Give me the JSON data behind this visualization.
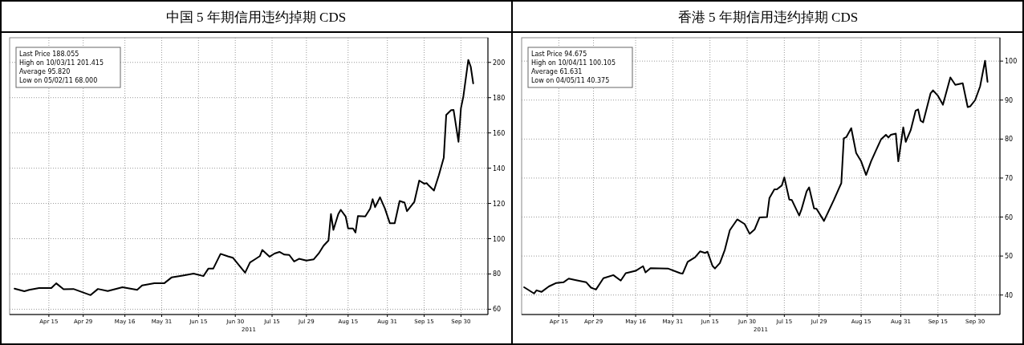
{
  "chart_data": [
    {
      "type": "line",
      "title": "中国 5 年期信用违约掉期 CDS",
      "xlabel": "2011",
      "color": "#000000",
      "grid": true,
      "x": [
        "2011-04-01",
        "2011-04-05",
        "2011-04-07",
        "2011-04-11",
        "2011-04-16",
        "2011-04-18",
        "2011-04-21",
        "2011-04-25",
        "2011-05-02",
        "2011-05-05",
        "2011-05-09",
        "2011-05-15",
        "2011-05-21",
        "2011-05-23",
        "2011-05-28",
        "2011-06-01",
        "2011-06-04",
        "2011-06-09",
        "2011-06-13",
        "2011-06-17",
        "2011-06-19",
        "2011-06-21",
        "2011-06-24",
        "2011-06-27",
        "2011-06-29",
        "2011-07-04",
        "2011-07-06",
        "2011-07-08",
        "2011-07-10",
        "2011-07-11",
        "2011-07-14",
        "2011-07-16",
        "2011-07-18",
        "2011-07-20",
        "2011-07-22",
        "2011-07-24",
        "2011-07-26",
        "2011-07-29",
        "2011-08-01",
        "2011-08-03",
        "2011-08-05",
        "2011-08-07",
        "2011-08-08",
        "2011-08-09",
        "2011-08-11",
        "2011-08-12",
        "2011-08-14",
        "2011-08-15",
        "2011-08-17",
        "2011-08-18",
        "2011-08-19",
        "2011-08-22",
        "2011-08-24",
        "2011-08-25",
        "2011-08-26",
        "2011-08-28",
        "2011-08-30",
        "2011-09-01",
        "2011-09-03",
        "2011-09-05",
        "2011-09-07",
        "2011-09-08",
        "2011-09-11",
        "2011-09-13",
        "2011-09-15",
        "2011-09-16",
        "2011-09-17",
        "2011-09-19",
        "2011-09-21",
        "2011-09-23",
        "2011-09-24",
        "2011-09-26",
        "2011-09-27",
        "2011-09-29",
        "2011-09-30",
        "2011-10-01",
        "2011-10-03",
        "2011-10-04",
        "2011-10-05"
      ],
      "values": [
        71.7,
        70.2,
        71,
        72,
        72,
        74.7,
        71.3,
        71.5,
        68,
        71.5,
        70.3,
        72.5,
        71,
        73.5,
        74.7,
        74.7,
        78,
        79.2,
        80.2,
        78.8,
        83,
        83,
        91.4,
        90,
        89.2,
        80.7,
        86.5,
        88.3,
        90.1,
        93.6,
        89.8,
        91.6,
        92.5,
        91,
        90.8,
        87.1,
        88.6,
        87.6,
        88.3,
        91.6,
        96,
        99,
        114,
        105,
        114,
        116.4,
        112.6,
        105.8,
        105.8,
        103.5,
        112.9,
        112.6,
        117.1,
        122.4,
        117.9,
        123.5,
        117.1,
        108.8,
        108.8,
        121.4,
        120.5,
        115.6,
        120.9,
        133,
        131.2,
        131.5,
        130,
        127.3,
        136.1,
        146,
        170.2,
        172.9,
        173,
        155,
        174,
        180.8,
        201.4,
        197.5,
        188.1
      ],
      "xlim": [
        "2011-03-30",
        "2011-10-11"
      ],
      "ylim": [
        57,
        214
      ],
      "xticks": [
        {
          "value": "2011-04-15",
          "label": "Apr 15"
        },
        {
          "value": "2011-04-29",
          "label": "Apr 29"
        },
        {
          "value": "2011-05-16",
          "label": "May 16"
        },
        {
          "value": "2011-05-31",
          "label": "May 31"
        },
        {
          "value": "2011-06-15",
          "label": "Jun 15"
        },
        {
          "value": "2011-06-30",
          "label": "Jun 30"
        },
        {
          "value": "2011-07-15",
          "label": "Jul 15"
        },
        {
          "value": "2011-07-29",
          "label": "Jul 29"
        },
        {
          "value": "2011-08-15",
          "label": "Aug 15"
        },
        {
          "value": "2011-08-31",
          "label": "Aug 31"
        },
        {
          "value": "2011-09-15",
          "label": "Sep 15"
        },
        {
          "value": "2011-09-30",
          "label": "Sep 30"
        }
      ],
      "yticks": [
        60,
        80,
        100,
        120,
        140,
        160,
        180,
        200
      ],
      "annotations": [
        "Last Price 188.055",
        "High on 10/03/11 201.415",
        "Average 95.820",
        "Low on 05/02/11 68.000"
      ]
    },
    {
      "type": "line",
      "title": "香港 5 年期信用违约掉期 CDS",
      "xlabel": "2011",
      "color": "#000000",
      "grid": true,
      "x": [
        "2011-04-01",
        "2011-04-05",
        "2011-04-06",
        "2011-04-08",
        "2011-04-11",
        "2011-04-14",
        "2011-04-17",
        "2011-04-19",
        "2011-04-22",
        "2011-04-26",
        "2011-04-28",
        "2011-04-30",
        "2011-05-03",
        "2011-05-07",
        "2011-05-10",
        "2011-05-12",
        "2011-05-16",
        "2011-05-19",
        "2011-05-20",
        "2011-05-22",
        "2011-05-29",
        "2011-06-03",
        "2011-06-04",
        "2011-06-06",
        "2011-06-09",
        "2011-06-11",
        "2011-06-13",
        "2011-06-14",
        "2011-06-16",
        "2011-06-17",
        "2011-06-19",
        "2011-06-21",
        "2011-06-23",
        "2011-06-26",
        "2011-06-29",
        "2011-07-01",
        "2011-07-03",
        "2011-07-05",
        "2011-07-08",
        "2011-07-09",
        "2011-07-11",
        "2011-07-12",
        "2011-07-14",
        "2011-07-15",
        "2011-07-17",
        "2011-07-18",
        "2011-07-21",
        "2011-07-22",
        "2011-07-24",
        "2011-07-25",
        "2011-07-27",
        "2011-07-28",
        "2011-07-31",
        "2011-08-04",
        "2011-08-06",
        "2011-08-07",
        "2011-08-08",
        "2011-08-09",
        "2011-08-11",
        "2011-08-13",
        "2011-08-15",
        "2011-08-17",
        "2011-08-19",
        "2011-08-21",
        "2011-08-23",
        "2011-08-25",
        "2011-08-26",
        "2011-08-27",
        "2011-08-29",
        "2011-08-30",
        "2011-09-01",
        "2011-09-02",
        "2011-09-04",
        "2011-09-06",
        "2011-09-07",
        "2011-09-08",
        "2011-09-09",
        "2011-09-12",
        "2011-09-13",
        "2011-09-15",
        "2011-09-17",
        "2011-09-20",
        "2011-09-22",
        "2011-09-25",
        "2011-09-27",
        "2011-09-28",
        "2011-09-30",
        "2011-10-02",
        "2011-10-04",
        "2011-10-05"
      ],
      "values": [
        42,
        40.4,
        41.2,
        40.8,
        42.2,
        43.1,
        43.3,
        44.2,
        43.8,
        43.3,
        41.9,
        41.4,
        44.3,
        45.1,
        43.7,
        45.6,
        46.2,
        47.4,
        45.8,
        46.9,
        46.8,
        45.6,
        45.5,
        48.5,
        49.7,
        51.2,
        50.8,
        51.1,
        47.5,
        46.8,
        48.2,
        51.6,
        56.6,
        59.4,
        58.2,
        55.7,
        56.8,
        59.9,
        60,
        64.9,
        67.1,
        67.1,
        68.1,
        70.2,
        64.5,
        64.4,
        60.4,
        62.1,
        66.6,
        67.6,
        62.2,
        62.1,
        59,
        64.4,
        67.3,
        68.7,
        80.2,
        80.5,
        82.8,
        76.4,
        74.3,
        70.8,
        74.3,
        77.1,
        79.9,
        81.1,
        80.4,
        81.1,
        81.4,
        74.3,
        83,
        79.3,
        82.3,
        87.3,
        87.6,
        84.7,
        84.3,
        91.7,
        92.5,
        91.1,
        88.8,
        95.8,
        93.9,
        94.3,
        88.2,
        88.4,
        90,
        93.5,
        100.1,
        94.7
      ],
      "xlim": [
        "2011-03-31",
        "2011-10-10"
      ],
      "ylim": [
        35,
        106
      ],
      "xticks": [
        {
          "value": "2011-04-15",
          "label": "Apr 15"
        },
        {
          "value": "2011-04-29",
          "label": "Apr 29"
        },
        {
          "value": "2011-05-16",
          "label": "May 16"
        },
        {
          "value": "2011-05-31",
          "label": "May 31"
        },
        {
          "value": "2011-06-15",
          "label": "Jun 15"
        },
        {
          "value": "2011-06-30",
          "label": "Jun 30"
        },
        {
          "value": "2011-07-15",
          "label": "Jul 15"
        },
        {
          "value": "2011-07-29",
          "label": "Jul 29"
        },
        {
          "value": "2011-08-15",
          "label": "Aug 15"
        },
        {
          "value": "2011-08-31",
          "label": "Aug 31"
        },
        {
          "value": "2011-09-15",
          "label": "Sep 15"
        },
        {
          "value": "2011-09-30",
          "label": "Sep 30"
        }
      ],
      "yticks": [
        40,
        50,
        60,
        70,
        80,
        90,
        100
      ],
      "annotations": [
        "Last Price 94.675",
        "High on 10/04/11 100.105",
        "Average 61.631",
        "Low on 04/05/11 40.375"
      ]
    }
  ]
}
